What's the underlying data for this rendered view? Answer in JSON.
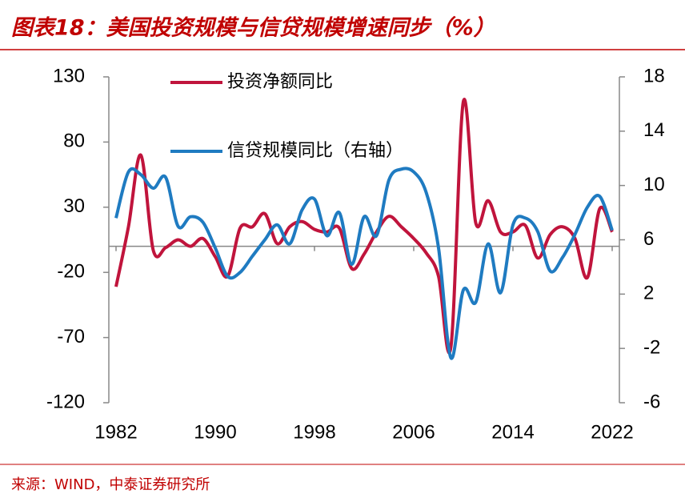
{
  "chart_data": {
    "type": "line",
    "title": "图表18：美国投资规模与信贷规模增速同步（%）",
    "source": "来源：WIND，中泰证券研究所",
    "x": [
      1982,
      1983,
      1984,
      1985,
      1986,
      1987,
      1988,
      1989,
      1990,
      1991,
      1992,
      1993,
      1994,
      1995,
      1996,
      1997,
      1998,
      1999,
      2000,
      2001,
      2002,
      2003,
      2004,
      2005,
      2006,
      2007,
      2008,
      2009,
      2010,
      2011,
      2012,
      2013,
      2014,
      2015,
      2016,
      2017,
      2018,
      2019,
      2020,
      2021,
      2022
    ],
    "xlim": [
      1982,
      2022
    ],
    "xticks": [
      1982,
      1990,
      1998,
      2006,
      2014,
      2022
    ],
    "ylim": [
      -120,
      130
    ],
    "yticks": [
      -120,
      -70,
      -20,
      30,
      80,
      130
    ],
    "y2lim": [
      -6,
      18
    ],
    "y2ticks": [
      -6,
      -2,
      2,
      6,
      10,
      14,
      18
    ],
    "series": [
      {
        "name": "投资净额同比",
        "color": "#c0143c",
        "values": [
          -31,
          15,
          70,
          -3,
          -1,
          5,
          0,
          6,
          -8,
          -23,
          14,
          15,
          25,
          2,
          15,
          19,
          13,
          11,
          14,
          -17,
          -6,
          11,
          23,
          15,
          6,
          -5,
          -23,
          -77,
          111,
          18,
          35,
          11,
          11,
          16,
          -9,
          9,
          15,
          6,
          -24,
          29,
          11
        ]
      },
      {
        "name": "信贷规模同比（右轴）",
        "color": "#1f7bc1",
        "axis": "y2",
        "values": [
          7.6,
          11.0,
          10.8,
          9.8,
          10.6,
          7.0,
          7.7,
          7.3,
          5.4,
          3.3,
          3.6,
          4.8,
          6.0,
          7.1,
          5.7,
          8.2,
          9.0,
          6.3,
          8.0,
          4.2,
          7.7,
          6.3,
          10.4,
          11.2,
          11.0,
          9.5,
          5.4,
          -2.7,
          2.3,
          1.4,
          5.7,
          2.1,
          7.1,
          7.6,
          6.6,
          3.7,
          4.7,
          6.4,
          8.4,
          9.2,
          6.7
        ]
      }
    ]
  }
}
